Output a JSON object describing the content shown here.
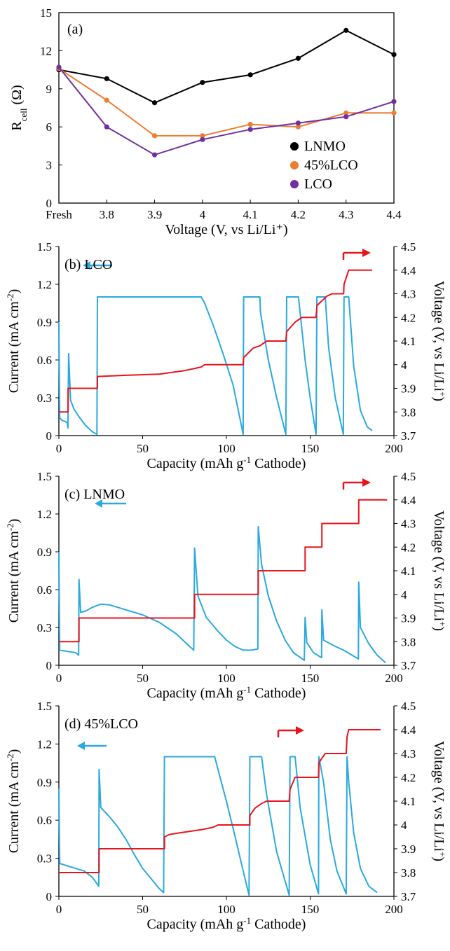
{
  "colors": {
    "lnmo": "#000000",
    "pct45": "#ed7d31",
    "lco": "#7030a0",
    "current": "#2aa9e0",
    "voltage": "#e8141c"
  },
  "chart_data": [
    {
      "type": "line",
      "panel_label": "(a)",
      "xlabel": "Voltage (V, vs Li/Li⁺)",
      "ylabel_main": "R",
      "ylabel_sub": "cell",
      "ylabel_tail": " (Ω)",
      "categories": [
        "Fresh",
        "3.8",
        "3.9",
        "4",
        "4.1",
        "4.2",
        "4.3",
        "4.4"
      ],
      "yticks": [
        "0",
        "3",
        "6",
        "9",
        "12",
        "15"
      ],
      "ylim": [
        0,
        15
      ],
      "legend_position": "lower-right",
      "series": [
        {
          "name": "LNMO",
          "color": "#000000",
          "values": [
            10.5,
            9.8,
            7.9,
            9.5,
            10.1,
            11.4,
            13.6,
            11.7
          ]
        },
        {
          "name": "45%LCO",
          "color": "#ed7d31",
          "values": [
            10.6,
            8.1,
            5.3,
            5.3,
            6.2,
            6.0,
            7.1,
            7.1
          ]
        },
        {
          "name": "LCO",
          "color": "#7030a0",
          "values": [
            10.7,
            6.0,
            3.8,
            5.0,
            5.8,
            6.3,
            6.8,
            8.0
          ]
        }
      ]
    },
    {
      "type": "line",
      "panel_label": "(b) LCO",
      "xlabel_pre": "Capacity (mAh g",
      "xlabel_sup": "-1",
      "xlabel_post": " Cathode)",
      "ylabel_left_pre": "Current (mA cm",
      "ylabel_left_sup": "-2",
      "ylabel_left_post": ")",
      "ylabel_right_pre": "Voltage (V, vs Li/Li",
      "ylabel_right_sup": "+",
      "ylabel_right_post": ")",
      "xticks": [
        "0",
        "50",
        "100",
        "150",
        "200"
      ],
      "yticks_left": [
        "0",
        "0.3",
        "0.6",
        "0.9",
        "1.2",
        "1.5"
      ],
      "yticks_right": [
        "3.7",
        "3.8",
        "3.9",
        "4",
        "4.1",
        "4.2",
        "4.3",
        "4.4",
        "4.5"
      ],
      "xlim": [
        0,
        200
      ],
      "ylim_left": [
        0,
        1.5
      ],
      "ylim_right": [
        3.7,
        4.5
      ],
      "series": [
        {
          "name": "Current",
          "axis": "left",
          "color": "#2aa9e0",
          "points": [
            [
              0,
              0.9
            ],
            [
              0.5,
              0.14
            ],
            [
              2,
              0.12
            ],
            [
              4,
              0.11
            ],
            [
              5,
              0.1
            ],
            [
              5.4,
              0.06
            ],
            [
              5.8,
              0.65
            ],
            [
              7,
              0.28
            ],
            [
              9,
              0.21
            ],
            [
              12,
              0.15
            ],
            [
              16,
              0.08
            ],
            [
              20,
              0.03
            ],
            [
              22.7,
              0.01
            ],
            [
              23,
              1.1
            ],
            [
              85,
              1.1
            ],
            [
              87,
              1.05
            ],
            [
              92,
              0.88
            ],
            [
              98,
              0.65
            ],
            [
              104,
              0.4
            ],
            [
              110,
              0.01
            ],
            [
              110.3,
              1.1
            ],
            [
              120,
              1.1
            ],
            [
              120.3,
              0.98
            ],
            [
              125,
              0.6
            ],
            [
              130,
              0.3
            ],
            [
              135.5,
              0.01
            ],
            [
              136,
              1.1
            ],
            [
              143,
              1.1
            ],
            [
              147,
              0.6
            ],
            [
              150,
              0.3
            ],
            [
              153.5,
              0.01
            ],
            [
              154,
              1.1
            ],
            [
              159,
              1.1
            ],
            [
              161,
              0.7
            ],
            [
              165,
              0.3
            ],
            [
              169.8,
              0.01
            ],
            [
              170.2,
              1.1
            ],
            [
              173,
              1.1
            ],
            [
              176,
              0.55
            ],
            [
              180,
              0.2
            ],
            [
              184,
              0.07
            ],
            [
              187,
              0.04
            ]
          ]
        },
        {
          "name": "Voltage",
          "axis": "right",
          "color": "#e8141c",
          "points": [
            [
              0,
              3.8
            ],
            [
              5.5,
              3.8
            ],
            [
              5.5,
              3.9
            ],
            [
              23,
              3.9
            ],
            [
              23,
              3.95
            ],
            [
              40,
              3.955
            ],
            [
              60,
              3.96
            ],
            [
              75,
              3.975
            ],
            [
              85,
              3.99
            ],
            [
              87,
              4.0
            ],
            [
              110,
              4.0
            ],
            [
              110.3,
              4.03
            ],
            [
              116,
              4.07
            ],
            [
              120,
              4.08
            ],
            [
              124,
              4.1
            ],
            [
              135.5,
              4.1
            ],
            [
              136,
              4.14
            ],
            [
              141,
              4.18
            ],
            [
              145,
              4.2
            ],
            [
              153.5,
              4.2
            ],
            [
              154,
              4.25
            ],
            [
              160,
              4.29
            ],
            [
              163,
              4.3
            ],
            [
              170,
              4.3
            ],
            [
              170.2,
              4.34
            ],
            [
              173,
              4.4
            ],
            [
              187,
              4.4
            ]
          ]
        }
      ]
    },
    {
      "type": "line",
      "panel_label": "(c) LNMO",
      "xlabel_pre": "Capacity (mAh g",
      "xlabel_sup": "-1",
      "xlabel_post": " Cathode)",
      "ylabel_left_pre": "Current (mA cm",
      "ylabel_left_sup": "-2",
      "ylabel_left_post": ")",
      "ylabel_right_pre": "Voltage (V, vs Li/Li",
      "ylabel_right_sup": "+",
      "ylabel_right_post": ")",
      "xticks": [
        "0",
        "50",
        "100",
        "150",
        "200"
      ],
      "yticks_left": [
        "0",
        "0.3",
        "0.6",
        "0.9",
        "1.2",
        "1.5"
      ],
      "yticks_right": [
        "3.7",
        "3.8",
        "3.9",
        "4",
        "4.1",
        "4.2",
        "4.3",
        "4.4",
        "4.5"
      ],
      "xlim": [
        0,
        200
      ],
      "ylim_left": [
        0,
        1.5
      ],
      "ylim_right": [
        3.7,
        4.5
      ],
      "series": [
        {
          "name": "Current",
          "axis": "left",
          "color": "#2aa9e0",
          "points": [
            [
              0,
              0.9
            ],
            [
              0.5,
              0.12
            ],
            [
              5,
              0.11
            ],
            [
              10,
              0.1
            ],
            [
              11.8,
              0.08
            ],
            [
              12,
              0.68
            ],
            [
              13,
              0.42
            ],
            [
              16,
              0.43
            ],
            [
              20,
              0.46
            ],
            [
              25,
              0.485
            ],
            [
              30,
              0.48
            ],
            [
              40,
              0.44
            ],
            [
              50,
              0.4
            ],
            [
              60,
              0.34
            ],
            [
              70,
              0.25
            ],
            [
              78,
              0.15
            ],
            [
              80.5,
              0.12
            ],
            [
              81,
              0.93
            ],
            [
              83,
              0.55
            ],
            [
              88,
              0.38
            ],
            [
              95,
              0.27
            ],
            [
              100,
              0.2
            ],
            [
              105,
              0.15
            ],
            [
              110,
              0.12
            ],
            [
              115,
              0.12
            ],
            [
              118.8,
              0.13
            ],
            [
              119,
              1.1
            ],
            [
              121,
              0.8
            ],
            [
              125,
              0.55
            ],
            [
              130,
              0.35
            ],
            [
              135,
              0.2
            ],
            [
              140,
              0.1
            ],
            [
              146.5,
              0.04
            ],
            [
              147,
              0.38
            ],
            [
              148,
              0.18
            ],
            [
              152,
              0.1
            ],
            [
              156.8,
              0.06
            ],
            [
              157,
              0.44
            ],
            [
              158,
              0.2
            ],
            [
              165,
              0.15
            ],
            [
              170,
              0.12
            ],
            [
              175,
              0.08
            ],
            [
              178.8,
              0.05
            ],
            [
              179,
              0.66
            ],
            [
              180,
              0.3
            ],
            [
              185,
              0.17
            ],
            [
              190,
              0.08
            ],
            [
              195,
              0.02
            ]
          ]
        },
        {
          "name": "Voltage",
          "axis": "right",
          "color": "#e8141c",
          "points": [
            [
              0,
              3.8
            ],
            [
              12,
              3.8
            ],
            [
              12,
              3.9
            ],
            [
              81,
              3.9
            ],
            [
              81,
              4.0
            ],
            [
              119,
              4.0
            ],
            [
              119,
              4.1
            ],
            [
              147,
              4.1
            ],
            [
              147,
              4.2
            ],
            [
              157,
              4.2
            ],
            [
              157,
              4.3
            ],
            [
              179,
              4.3
            ],
            [
              179,
              4.4
            ],
            [
              196,
              4.4
            ]
          ]
        }
      ]
    },
    {
      "type": "line",
      "panel_label": "(d) 45%LCO",
      "xlabel_pre": "Capacity (mAh g",
      "xlabel_sup": "-1",
      "xlabel_post": " Cathode)",
      "ylabel_left_pre": "Current (mA cm",
      "ylabel_left_sup": "-2",
      "ylabel_left_post": ")",
      "ylabel_right_pre": "Voltage (V, vs Li/Li",
      "ylabel_right_sup": "+",
      "ylabel_right_post": ")",
      "xticks": [
        "0",
        "50",
        "100",
        "150",
        "200"
      ],
      "yticks_left": [
        "0",
        "0.3",
        "0.6",
        "0.9",
        "1.2",
        "1.5"
      ],
      "yticks_right": [
        "3.7",
        "3.8",
        "3.9",
        "4",
        "4.1",
        "4.2",
        "4.3",
        "4.4",
        "4.5"
      ],
      "xlim": [
        0,
        200
      ],
      "ylim_left": [
        0,
        1.5
      ],
      "ylim_right": [
        3.7,
        4.5
      ],
      "series": [
        {
          "name": "Current",
          "axis": "left",
          "color": "#2aa9e0",
          "points": [
            [
              0,
              0.85
            ],
            [
              0.5,
              0.26
            ],
            [
              5,
              0.24
            ],
            [
              10,
              0.22
            ],
            [
              15,
              0.2
            ],
            [
              20,
              0.15
            ],
            [
              23.8,
              0.08
            ],
            [
              24,
              1.0
            ],
            [
              25,
              0.7
            ],
            [
              30,
              0.63
            ],
            [
              35,
              0.55
            ],
            [
              40,
              0.45
            ],
            [
              45,
              0.33
            ],
            [
              50,
              0.22
            ],
            [
              55,
              0.14
            ],
            [
              60,
              0.06
            ],
            [
              62.5,
              0.03
            ],
            [
              63,
              1.1
            ],
            [
              93,
              1.1
            ],
            [
              95,
              1.0
            ],
            [
              100,
              0.75
            ],
            [
              105,
              0.48
            ],
            [
              110,
              0.2
            ],
            [
              113.5,
              0.01
            ],
            [
              114,
              1.1
            ],
            [
              121,
              1.1
            ],
            [
              124,
              0.8
            ],
            [
              130,
              0.35
            ],
            [
              137.5,
              0.01
            ],
            [
              138,
              1.1
            ],
            [
              141,
              1.1
            ],
            [
              144,
              0.7
            ],
            [
              150,
              0.25
            ],
            [
              155,
              0.02
            ],
            [
              155.2,
              1.1
            ],
            [
              158,
              0.9
            ],
            [
              162,
              0.45
            ],
            [
              166,
              0.2
            ],
            [
              171.5,
              0.02
            ],
            [
              172,
              1.1
            ],
            [
              173,
              0.9
            ],
            [
              176,
              0.5
            ],
            [
              180,
              0.22
            ],
            [
              185,
              0.08
            ],
            [
              190,
              0.03
            ]
          ]
        },
        {
          "name": "Voltage",
          "axis": "right",
          "color": "#e8141c",
          "points": [
            [
              0,
              3.8
            ],
            [
              24,
              3.8
            ],
            [
              24,
              3.9
            ],
            [
              63,
              3.9
            ],
            [
              63,
              3.95
            ],
            [
              66,
              3.96
            ],
            [
              75,
              3.97
            ],
            [
              85,
              3.98
            ],
            [
              92,
              3.99
            ],
            [
              95,
              4.0
            ],
            [
              114,
              4.0
            ],
            [
              114,
              4.04
            ],
            [
              117,
              4.07
            ],
            [
              121,
              4.09
            ],
            [
              124,
              4.1
            ],
            [
              137.5,
              4.1
            ],
            [
              138,
              4.15
            ],
            [
              141,
              4.2
            ],
            [
              155,
              4.2
            ],
            [
              155.2,
              4.26
            ],
            [
              157,
              4.28
            ],
            [
              159,
              4.3
            ],
            [
              171.5,
              4.3
            ],
            [
              172,
              4.37
            ],
            [
              173,
              4.4
            ],
            [
              192,
              4.4
            ]
          ]
        }
      ]
    }
  ]
}
